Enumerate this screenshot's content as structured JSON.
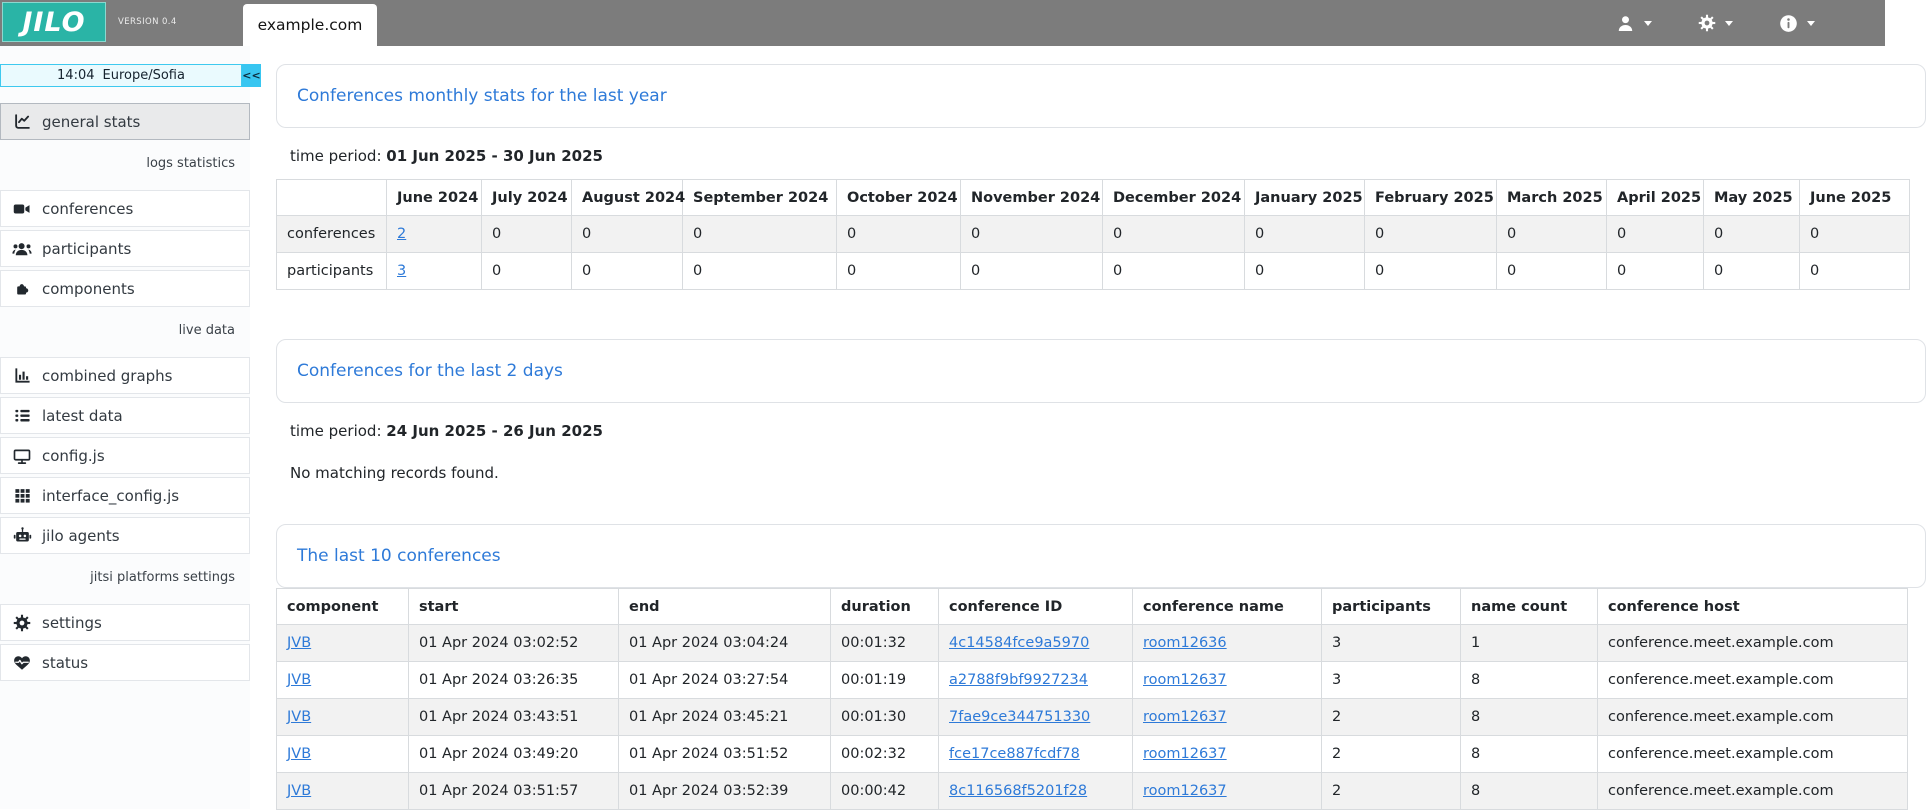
{
  "colors": {
    "brand_teal": "#2ab4a6",
    "topbar_gray": "#7c7c7c",
    "link_blue": "#2e7ad8",
    "accent_cyan": "#38c6f1"
  },
  "topbar": {
    "logo_text": "JILO",
    "version": "VERSION 0.4",
    "active_tab": "example.com",
    "menus": [
      {
        "icon": "user"
      },
      {
        "icon": "gear"
      },
      {
        "icon": "info-circle"
      }
    ]
  },
  "sidebar": {
    "time": "14:04",
    "timezone": "Europe/Sofia",
    "collapse_label": "<<",
    "items": [
      {
        "type": "link",
        "icon": "chart-line",
        "label": "general stats",
        "active": true
      },
      {
        "type": "section",
        "label": "logs statistics"
      },
      {
        "type": "link",
        "icon": "video",
        "label": "conferences"
      },
      {
        "type": "link",
        "icon": "users",
        "label": "participants"
      },
      {
        "type": "link",
        "icon": "puzzle",
        "label": "components"
      },
      {
        "type": "section",
        "label": "live data"
      },
      {
        "type": "link",
        "icon": "chart-column",
        "label": "combined graphs"
      },
      {
        "type": "link",
        "icon": "list",
        "label": "latest data"
      },
      {
        "type": "link",
        "icon": "desktop",
        "label": "config.js"
      },
      {
        "type": "link",
        "icon": "grid",
        "label": "interface_config.js"
      },
      {
        "type": "link",
        "icon": "robot",
        "label": "jilo agents"
      },
      {
        "type": "section",
        "label": "jitsi platforms settings"
      },
      {
        "type": "link",
        "icon": "gear",
        "label": "settings"
      },
      {
        "type": "link",
        "icon": "heart-pulse",
        "label": "status"
      }
    ]
  },
  "main": {
    "monthly_card": {
      "title": "Conferences monthly stats for the last year",
      "time_period_label": "time period:",
      "time_period_value": "01 Jun 2025 - 30 Jun 2025",
      "table": {
        "columns": [
          "",
          "June 2024",
          "July 2024",
          "August 2024",
          "September 2024",
          "October 2024",
          "November 2024",
          "December 2024",
          "January 2025",
          "February 2025",
          "March 2025",
          "April 2025",
          "May 2025",
          "June 2025"
        ],
        "rows": [
          {
            "label": "conferences",
            "cells": [
              {
                "t": "2",
                "link": true
              },
              "0",
              "0",
              "0",
              "0",
              "0",
              "0",
              "0",
              "0",
              "0",
              "0",
              "0",
              "0"
            ]
          },
          {
            "label": "participants",
            "cells": [
              {
                "t": "3",
                "link": true
              },
              "0",
              "0",
              "0",
              "0",
              "0",
              "0",
              "0",
              "0",
              "0",
              "0",
              "0",
              "0"
            ]
          }
        ]
      }
    },
    "lastdays_card": {
      "title": "Conferences for the last 2 days",
      "time_period_label": "time period:",
      "time_period_value": "24 Jun 2025 - 26 Jun 2025",
      "empty_message": "No matching records found."
    },
    "last10_card": {
      "title": "The last 10 conferences",
      "table": {
        "columns": [
          "component",
          "start",
          "end",
          "duration",
          "conference ID",
          "conference name",
          "participants",
          "name count",
          "conference host"
        ],
        "link_columns": [
          0,
          4,
          5
        ],
        "rows": [
          [
            "JVB",
            "01 Apr 2024 03:02:52",
            "01 Apr 2024 03:04:24",
            "00:01:32",
            "4c14584fce9a5970",
            "room12636",
            "3",
            "1",
            "conference.meet.example.com"
          ],
          [
            "JVB",
            "01 Apr 2024 03:26:35",
            "01 Apr 2024 03:27:54",
            "00:01:19",
            "a2788f9bf9927234",
            "room12637",
            "3",
            "8",
            "conference.meet.example.com"
          ],
          [
            "JVB",
            "01 Apr 2024 03:43:51",
            "01 Apr 2024 03:45:21",
            "00:01:30",
            "7fae9ce344751330",
            "room12637",
            "2",
            "8",
            "conference.meet.example.com"
          ],
          [
            "JVB",
            "01 Apr 2024 03:49:20",
            "01 Apr 2024 03:51:52",
            "00:02:32",
            "fce17ce887fcdf78",
            "room12637",
            "2",
            "8",
            "conference.meet.example.com"
          ],
          [
            "JVB",
            "01 Apr 2024 03:51:57",
            "01 Apr 2024 03:52:39",
            "00:00:42",
            "8c116568f5201f28",
            "room12637",
            "2",
            "8",
            "conference.meet.example.com"
          ]
        ]
      }
    }
  }
}
